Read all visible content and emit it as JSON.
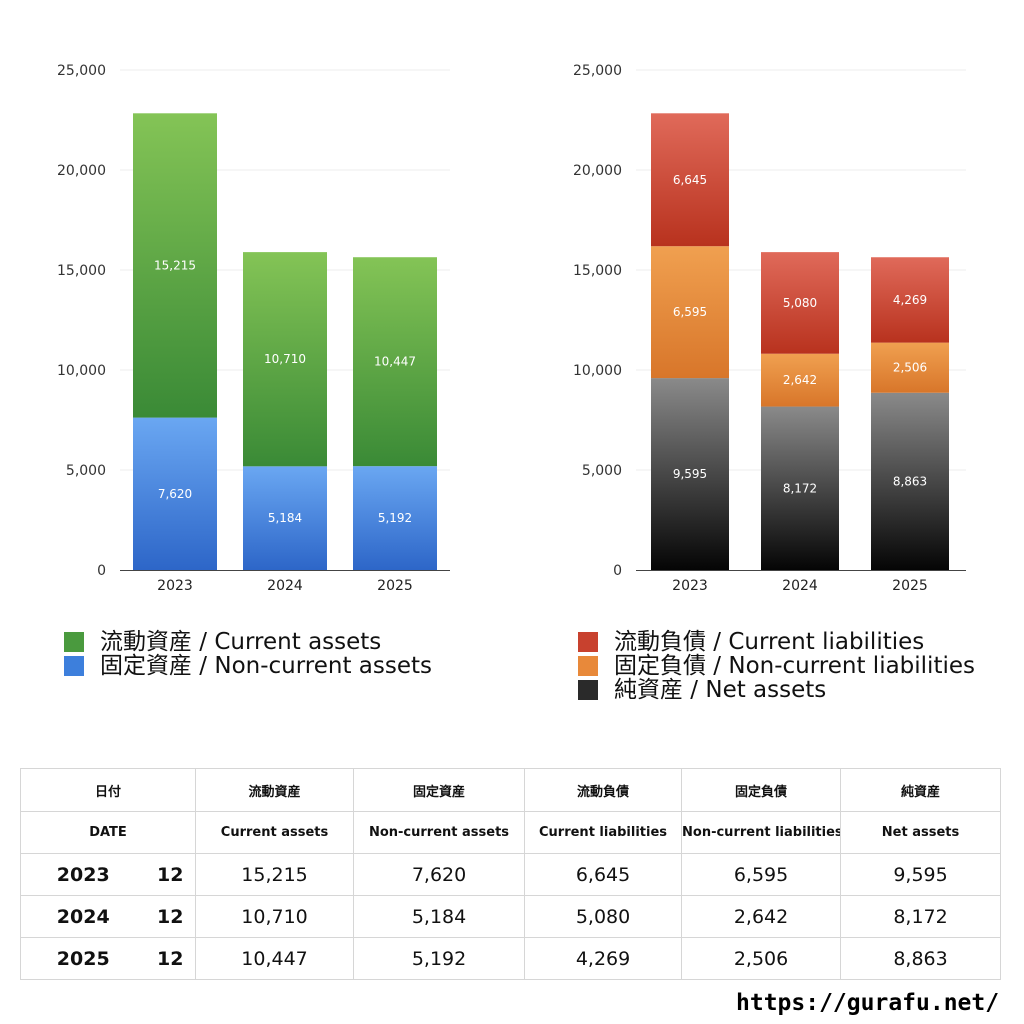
{
  "chart_data": [
    {
      "type": "bar",
      "stacked": true,
      "categories": [
        "2023",
        "2024",
        "2025"
      ],
      "ylim": [
        0,
        25000
      ],
      "yticks": [
        "0",
        "5,000",
        "10,000",
        "15,000",
        "20,000",
        "25,000"
      ],
      "grid": true,
      "legend_position": "bottom",
      "series": [
        {
          "name": "固定資産 / Non-current assets",
          "values": [
            7620,
            5184,
            5192
          ],
          "labels": [
            "7,620",
            "5,184",
            "5,192"
          ],
          "color_top": "#6aa7f2",
          "color_bottom": "#2d66c8"
        },
        {
          "name": "流動資産 / Current assets",
          "values": [
            15215,
            10710,
            10447
          ],
          "labels": [
            "15,215",
            "10,710",
            "10,447"
          ],
          "color_top": "#84c456",
          "color_bottom": "#3a8a36"
        }
      ]
    },
    {
      "type": "bar",
      "stacked": true,
      "categories": [
        "2023",
        "2024",
        "2025"
      ],
      "ylim": [
        0,
        25000
      ],
      "yticks": [
        "0",
        "5,000",
        "10,000",
        "15,000",
        "20,000",
        "25,000"
      ],
      "grid": true,
      "legend_position": "bottom",
      "series": [
        {
          "name": "純資産 / Net assets",
          "values": [
            9595,
            8172,
            8863
          ],
          "labels": [
            "9,595",
            "8,172",
            "8,863"
          ],
          "color_top": "#8a8a8a",
          "color_bottom": "#050505"
        },
        {
          "name": "固定負債 / Non-current liabilities",
          "values": [
            6595,
            2642,
            2506
          ],
          "labels": [
            "6,595",
            "2,642",
            "2,506"
          ],
          "color_top": "#f0a050",
          "color_bottom": "#d8762a"
        },
        {
          "name": "流動負債 / Current liabilities",
          "values": [
            6645,
            5080,
            4269
          ],
          "labels": [
            "6,645",
            "5,080",
            "4,269"
          ],
          "color_top": "#e06a5a",
          "color_bottom": "#b8321e"
        }
      ]
    }
  ],
  "legend_left": [
    {
      "label": "流動資産 / Current assets",
      "color": "#4a9a3e"
    },
    {
      "label": "固定資産 / Non-current assets",
      "color": "#3d7fdc"
    }
  ],
  "legend_right": [
    {
      "label": "流動負債 / Current liabilities",
      "color": "#c8412e"
    },
    {
      "label": "固定負債 / Non-current liabilities",
      "color": "#e8893a"
    },
    {
      "label": "純資産 / Net assets",
      "color": "#2a2a2a"
    }
  ],
  "table": {
    "header_jp": {
      "date": "日付",
      "c1": "流動資産",
      "c2": "固定資産",
      "c3": "流動負債",
      "c4": "固定負債",
      "c5": "純資産"
    },
    "header_en": {
      "date": "DATE",
      "c1": "Current assets",
      "c2": "Non-current assets",
      "c3": "Current liabilities",
      "c4": "Non-current liabilities",
      "c5": "Net assets"
    },
    "rows": [
      {
        "year": "2023",
        "month": "12",
        "c1": "15,215",
        "c2": "7,620",
        "c3": "6,645",
        "c4": "6,595",
        "c5": "9,595"
      },
      {
        "year": "2024",
        "month": "12",
        "c1": "10,710",
        "c2": "5,184",
        "c3": "5,080",
        "c4": "2,642",
        "c5": "8,172"
      },
      {
        "year": "2025",
        "month": "12",
        "c1": "10,447",
        "c2": "5,192",
        "c3": "4,269",
        "c4": "2,506",
        "c5": "8,863"
      }
    ]
  },
  "site_url": "https://gurafu.net/"
}
